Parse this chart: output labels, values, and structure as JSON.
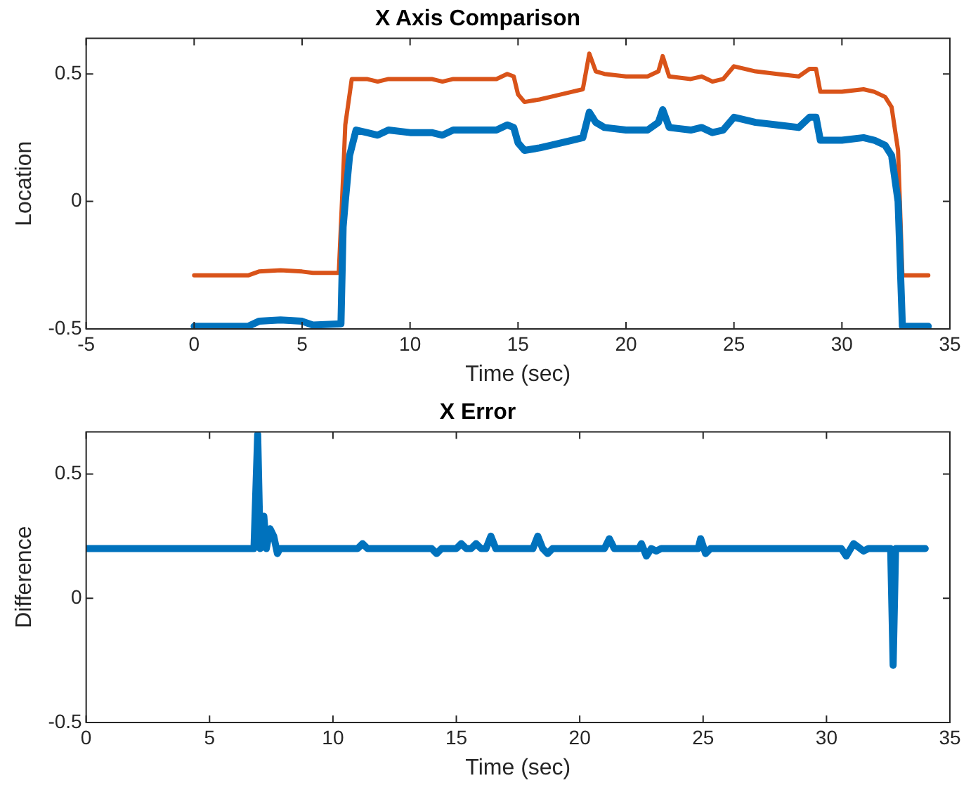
{
  "chart_data": [
    {
      "type": "line",
      "title": "X Axis Comparison",
      "xlabel": "Time (sec)",
      "ylabel": "Location",
      "xlim": [
        -5,
        35
      ],
      "xticks": [
        -5,
        0,
        5,
        10,
        15,
        20,
        25,
        30,
        35
      ],
      "ylim": [
        -0.5,
        0.64
      ],
      "yticks": [
        -0.5,
        0,
        0.5
      ],
      "series": [
        {
          "color": "#0072bd",
          "x": [
            0,
            2.5,
            3,
            4,
            5,
            5.5,
            6.8,
            6.9,
            7,
            7.2,
            7.5,
            8,
            8.5,
            9,
            10,
            11,
            11.5,
            12,
            14,
            14.5,
            14.8,
            15,
            15.3,
            16,
            16.5,
            17.5,
            18,
            18.3,
            18.6,
            19,
            20,
            21,
            21.5,
            21.7,
            22,
            23,
            23.5,
            24,
            24.5,
            25,
            26,
            27,
            28,
            28.5,
            28.8,
            29,
            30,
            31,
            31.5,
            32,
            32.3,
            32.6,
            32.8,
            34
          ],
          "values": [
            -0.49,
            -0.49,
            -0.47,
            -0.465,
            -0.47,
            -0.485,
            -0.48,
            -0.1,
            0,
            0.18,
            0.28,
            0.27,
            0.26,
            0.28,
            0.27,
            0.27,
            0.26,
            0.28,
            0.28,
            0.3,
            0.29,
            0.23,
            0.2,
            0.21,
            0.22,
            0.24,
            0.25,
            0.35,
            0.31,
            0.29,
            0.28,
            0.28,
            0.31,
            0.36,
            0.29,
            0.28,
            0.29,
            0.27,
            0.28,
            0.33,
            0.31,
            0.3,
            0.29,
            0.33,
            0.33,
            0.24,
            0.24,
            0.25,
            0.24,
            0.22,
            0.18,
            0,
            -0.49,
            -0.49
          ]
        },
        {
          "color": "#d95319",
          "x": [
            0,
            2.5,
            3,
            4,
            5,
            5.5,
            6.7,
            6.9,
            7,
            7.3,
            8,
            8.5,
            9,
            10,
            11,
            11.5,
            12,
            14,
            14.5,
            14.8,
            15,
            15.3,
            16,
            16.5,
            17.5,
            18,
            18.3,
            18.6,
            19,
            20,
            21,
            21.5,
            21.7,
            22,
            23,
            23.5,
            24,
            24.5,
            25,
            26,
            27,
            28,
            28.5,
            28.8,
            29,
            30,
            31,
            31.5,
            32,
            32.3,
            32.6,
            32.8,
            34
          ],
          "values": [
            -0.29,
            -0.29,
            -0.275,
            -0.27,
            -0.275,
            -0.28,
            -0.28,
            0.1,
            0.3,
            0.48,
            0.48,
            0.47,
            0.48,
            0.48,
            0.48,
            0.47,
            0.48,
            0.48,
            0.5,
            0.49,
            0.42,
            0.39,
            0.4,
            0.41,
            0.43,
            0.44,
            0.58,
            0.51,
            0.5,
            0.49,
            0.49,
            0.51,
            0.57,
            0.49,
            0.48,
            0.49,
            0.47,
            0.48,
            0.53,
            0.51,
            0.5,
            0.49,
            0.52,
            0.52,
            0.43,
            0.43,
            0.44,
            0.43,
            0.41,
            0.37,
            0.2,
            -0.29,
            -0.29
          ]
        }
      ]
    },
    {
      "type": "line",
      "title": "X Error",
      "xlabel": "Time (sec)",
      "ylabel": "Difference",
      "xlim": [
        0,
        35
      ],
      "xticks": [
        0,
        5,
        10,
        15,
        20,
        25,
        30,
        35
      ],
      "ylim": [
        -0.5,
        0.67
      ],
      "yticks": [
        -0.5,
        0,
        0.5
      ],
      "series": [
        {
          "color": "#0072bd",
          "x": [
            0,
            6.8,
            6.95,
            7.05,
            7.2,
            7.3,
            7.45,
            7.6,
            7.75,
            7.85,
            11,
            11.2,
            11.4,
            14,
            14.2,
            14.4,
            15,
            15.2,
            15.4,
            15.6,
            15.8,
            16,
            16.2,
            16.4,
            16.6,
            18.1,
            18.3,
            18.5,
            18.7,
            18.9,
            21,
            21.2,
            21.4,
            22.4,
            22.5,
            22.7,
            22.9,
            23.1,
            23.3,
            24.8,
            24.9,
            25.1,
            25.3,
            30.6,
            30.8,
            31.1,
            31.5,
            31.7,
            32.6,
            32.7,
            32.8,
            32.9,
            34
          ],
          "values": [
            0.2,
            0.2,
            0.66,
            0.2,
            0.33,
            0.2,
            0.28,
            0.25,
            0.18,
            0.2,
            0.2,
            0.22,
            0.2,
            0.2,
            0.18,
            0.2,
            0.2,
            0.22,
            0.2,
            0.2,
            0.22,
            0.2,
            0.2,
            0.25,
            0.2,
            0.2,
            0.25,
            0.2,
            0.18,
            0.2,
            0.2,
            0.24,
            0.2,
            0.2,
            0.22,
            0.17,
            0.2,
            0.19,
            0.2,
            0.2,
            0.24,
            0.18,
            0.2,
            0.2,
            0.17,
            0.22,
            0.19,
            0.2,
            0.2,
            -0.27,
            0.2,
            0.2,
            0.2
          ]
        }
      ]
    }
  ]
}
